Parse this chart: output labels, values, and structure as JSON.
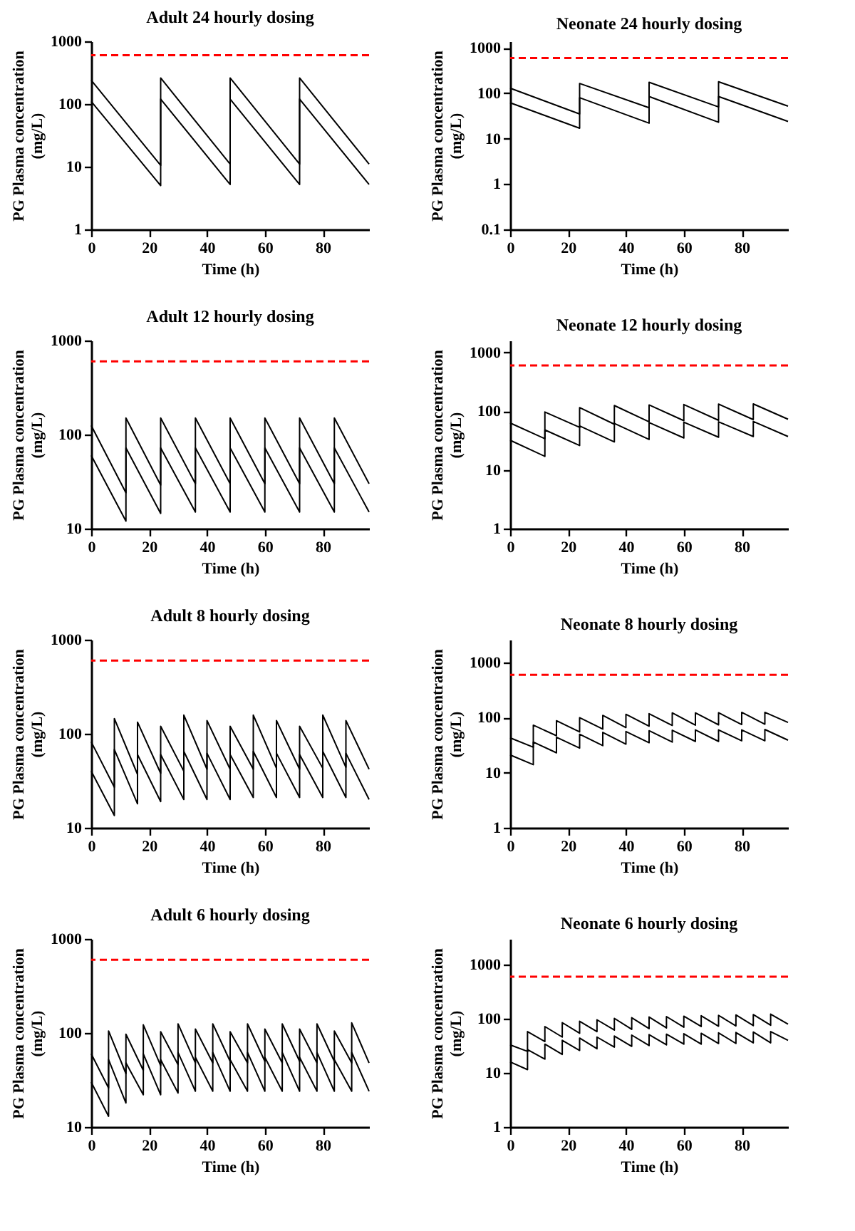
{
  "chart_data": [
    {
      "type": "line",
      "title": "Adult 24 hourly dosing",
      "xlabel": "Time (h)",
      "ylabel": "PG Plasma concentration\n(mg/L)",
      "log": true,
      "xlim": [
        0,
        96
      ],
      "xticks": [
        0,
        20,
        40,
        60,
        80
      ],
      "ylim": [
        1,
        1000
      ],
      "yticks": [
        1,
        10,
        100,
        1000
      ],
      "x": [
        0,
        24,
        24,
        48,
        48,
        72,
        72,
        96
      ],
      "series": [
        {
          "color": "#000000",
          "values": [
            240,
            10.5,
            260,
            11,
            260,
            11,
            260,
            11
          ]
        },
        {
          "color": "#000000",
          "values": [
            110,
            5,
            120,
            5.2,
            120,
            5.2,
            120,
            5.2
          ]
        }
      ],
      "ref_lines": [
        {
          "axis": "y",
          "value": 600,
          "color": "#ff0000",
          "line_style": "dashed"
        }
      ]
    },
    {
      "type": "line",
      "title": "Neonate 24 hourly dosing",
      "xlabel": "Time (h)",
      "ylabel": "PG Plasma concentration\n(mg/L)",
      "log": true,
      "xlim": [
        0,
        96
      ],
      "xticks": [
        0,
        20,
        40,
        60,
        80
      ],
      "ylim": [
        0.1,
        1400
      ],
      "yticks": [
        0.1,
        1,
        10,
        100,
        1000
      ],
      "x": [
        0,
        24,
        24,
        48,
        48,
        72,
        72,
        96
      ],
      "series": [
        {
          "color": "#000000",
          "values": [
            130,
            35,
            165,
            48,
            175,
            50,
            180,
            52
          ]
        },
        {
          "color": "#000000",
          "values": [
            62,
            17,
            80,
            22,
            85,
            23,
            85,
            24
          ]
        }
      ],
      "ref_lines": [
        {
          "axis": "y",
          "value": 600,
          "color": "#ff0000",
          "line_style": "dashed"
        }
      ]
    },
    {
      "type": "line",
      "title": "Adult 12 hourly dosing",
      "xlabel": "Time (h)",
      "ylabel": "PG Plasma concentration\n(mg/L)",
      "log": true,
      "xlim": [
        0,
        96
      ],
      "xticks": [
        0,
        20,
        40,
        60,
        80
      ],
      "ylim": [
        10,
        1000
      ],
      "yticks": [
        10,
        100,
        1000
      ],
      "x": [
        0,
        12,
        12,
        24,
        24,
        36,
        36,
        48,
        48,
        60,
        60,
        72,
        72,
        84,
        84,
        96
      ],
      "series": [
        {
          "color": "#000000",
          "values": [
            125,
            24,
            150,
            29,
            150,
            30,
            150,
            30,
            150,
            30,
            150,
            30,
            150,
            30,
            150,
            30
          ]
        },
        {
          "color": "#000000",
          "values": [
            60,
            12,
            72,
            14.5,
            72,
            15,
            72,
            15,
            72,
            15,
            72,
            15,
            72,
            15,
            72,
            15
          ]
        }
      ],
      "ref_lines": [
        {
          "axis": "y",
          "value": 600,
          "color": "#ff0000",
          "line_style": "dashed"
        }
      ]
    },
    {
      "type": "line",
      "title": "Neonate 12 hourly dosing",
      "xlabel": "Time (h)",
      "ylabel": "PG Plasma concentration\n(mg/L)",
      "log": true,
      "xlim": [
        0,
        96
      ],
      "xticks": [
        0,
        20,
        40,
        60,
        80
      ],
      "ylim": [
        1,
        1600
      ],
      "yticks": [
        1,
        10,
        100,
        1000
      ],
      "x": [
        0,
        12,
        12,
        24,
        24,
        36,
        36,
        48,
        48,
        60,
        60,
        72,
        72,
        84,
        84,
        96
      ],
      "series": [
        {
          "color": "#000000",
          "values": [
            63,
            34,
            97,
            53,
            115,
            60,
            125,
            66,
            128,
            69,
            130,
            70,
            132,
            72,
            133,
            73
          ]
        },
        {
          "color": "#000000",
          "values": [
            32,
            17,
            48,
            26,
            56,
            30,
            62,
            33,
            64,
            35,
            65,
            36,
            66,
            37,
            67,
            37
          ]
        }
      ],
      "ref_lines": [
        {
          "axis": "y",
          "value": 600,
          "color": "#ff0000",
          "line_style": "dashed"
        }
      ]
    },
    {
      "type": "line",
      "title": "Adult 8 hourly dosing",
      "xlabel": "Time (h)",
      "ylabel": "PG Plasma concentration\n(mg/L)",
      "log": true,
      "xlim": [
        0,
        96
      ],
      "xticks": [
        0,
        20,
        40,
        60,
        80
      ],
      "ylim": [
        10,
        1000
      ],
      "yticks": [
        10,
        100,
        1000
      ],
      "x": [
        0,
        8,
        8,
        16,
        16,
        24,
        24,
        32,
        32,
        40,
        40,
        48,
        48,
        56,
        56,
        64,
        64,
        72,
        72,
        80,
        80,
        88,
        88,
        96
      ],
      "series": [
        {
          "color": "#000000",
          "values": [
            82,
            27,
            145,
            37,
            133,
            38,
            120,
            40,
            158,
            42,
            138,
            42,
            120,
            42,
            158,
            43,
            138,
            42,
            120,
            43,
            158,
            44,
            138,
            42
          ]
        },
        {
          "color": "#000000",
          "values": [
            40,
            13.5,
            68,
            18,
            60,
            19,
            60,
            20,
            65,
            20,
            62,
            20,
            60,
            21,
            65,
            21,
            62,
            21,
            60,
            21,
            65,
            21,
            62,
            20
          ]
        }
      ],
      "ref_lines": [
        {
          "axis": "y",
          "value": 600,
          "color": "#ff0000",
          "line_style": "dashed"
        }
      ]
    },
    {
      "type": "line",
      "title": "Neonate 8 hourly dosing",
      "xlabel": "Time (h)",
      "ylabel": "PG Plasma concentration\n(mg/L)",
      "log": true,
      "xlim": [
        0,
        96
      ],
      "xticks": [
        0,
        20,
        40,
        60,
        80
      ],
      "ylim": [
        1,
        2600
      ],
      "yticks": [
        1,
        10,
        100,
        1000
      ],
      "x": [
        0,
        8,
        8,
        16,
        16,
        24,
        24,
        32,
        32,
        40,
        40,
        48,
        48,
        56,
        56,
        64,
        64,
        72,
        72,
        80,
        80,
        88,
        88,
        96
      ],
      "series": [
        {
          "color": "#000000",
          "values": [
            43,
            29,
            73,
            47,
            88,
            55,
            100,
            62,
            110,
            66,
            115,
            70,
            118,
            72,
            122,
            73,
            122,
            74,
            123,
            75,
            125,
            76,
            125,
            82
          ]
        },
        {
          "color": "#000000",
          "values": [
            21,
            14,
            36,
            23,
            44,
            28,
            50,
            31,
            54,
            33,
            56,
            35,
            58,
            36,
            59,
            37,
            60,
            37,
            60,
            38,
            60,
            38,
            61,
            39
          ]
        }
      ],
      "ref_lines": [
        {
          "axis": "y",
          "value": 600,
          "color": "#ff0000",
          "line_style": "dashed"
        }
      ]
    },
    {
      "type": "line",
      "title": "Adult 6 hourly dosing",
      "xlabel": "Time (h)",
      "ylabel": "PG Plasma concentration\n(mg/L)",
      "log": true,
      "xlim": [
        0,
        96
      ],
      "xticks": [
        0,
        20,
        40,
        60,
        80
      ],
      "ylim": [
        10,
        1000
      ],
      "yticks": [
        10,
        100,
        1000
      ],
      "x": [
        0,
        6,
        6,
        12,
        12,
        18,
        18,
        24,
        24,
        30,
        30,
        36,
        36,
        42,
        42,
        48,
        48,
        54,
        54,
        60,
        60,
        66,
        66,
        72,
        72,
        78,
        78,
        84,
        84,
        90,
        90,
        96
      ],
      "series": [
        {
          "color": "#000000",
          "values": [
            60,
            26,
            105,
            37,
            97,
            40,
            122,
            45,
            103,
            46,
            125,
            48,
            110,
            48,
            125,
            50,
            103,
            48,
            125,
            50,
            110,
            48,
            125,
            50,
            110,
            48,
            125,
            50,
            105,
            48,
            128,
            48
          ]
        },
        {
          "color": "#000000",
          "values": [
            30,
            13,
            52,
            18,
            48,
            22,
            60,
            22,
            52,
            23,
            62,
            24,
            55,
            24,
            62,
            24,
            52,
            24,
            62,
            24,
            55,
            24,
            62,
            24,
            55,
            24,
            62,
            24,
            52,
            24,
            62,
            24
          ]
        }
      ],
      "ref_lines": [
        {
          "axis": "y",
          "value": 600,
          "color": "#ff0000",
          "line_style": "dashed"
        }
      ]
    },
    {
      "type": "line",
      "title": "Neonate 6 hourly dosing",
      "xlabel": "Time (h)",
      "ylabel": "PG Plasma concentration\n(mg/L)",
      "log": true,
      "xlim": [
        0,
        96
      ],
      "xticks": [
        0,
        20,
        40,
        60,
        80
      ],
      "ylim": [
        1,
        3000
      ],
      "yticks": [
        1,
        10,
        100,
        1000
      ],
      "x": [
        0,
        6,
        6,
        12,
        12,
        18,
        18,
        24,
        24,
        30,
        30,
        36,
        36,
        42,
        42,
        48,
        48,
        54,
        54,
        60,
        60,
        66,
        66,
        72,
        72,
        78,
        78,
        84,
        84,
        90,
        90,
        96
      ],
      "series": [
        {
          "color": "#000000",
          "values": [
            33,
            25,
            58,
            38,
            72,
            46,
            85,
            54,
            90,
            58,
            96,
            62,
            102,
            64,
            105,
            66,
            108,
            68,
            110,
            70,
            112,
            72,
            114,
            73,
            116,
            74,
            118,
            75,
            120,
            76,
            122,
            80
          ]
        },
        {
          "color": "#000000",
          "values": [
            16,
            11.5,
            27,
            18,
            34,
            22,
            40,
            26,
            44,
            28,
            46,
            30,
            48,
            31,
            50,
            32,
            51,
            33,
            52,
            34,
            53,
            34,
            54,
            35,
            55,
            35,
            56,
            36,
            57,
            36,
            58,
            40
          ]
        }
      ],
      "ref_lines": [
        {
          "axis": "y",
          "value": 600,
          "color": "#ff0000",
          "line_style": "dashed"
        }
      ]
    }
  ]
}
